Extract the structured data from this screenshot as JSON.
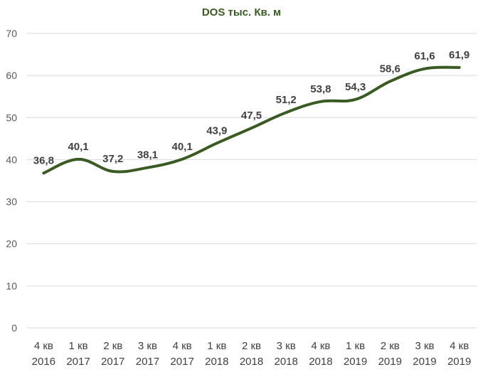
{
  "chart_data": {
    "type": "line",
    "title": "DOS тыс. Кв. м",
    "xlabel": "",
    "ylabel": "",
    "categories": [
      [
        "4 кв",
        "2016"
      ],
      [
        "1 кв",
        "2017"
      ],
      [
        "2 кв",
        "2017"
      ],
      [
        "3 кв",
        "2017"
      ],
      [
        "4 кв",
        "2017"
      ],
      [
        "1 кв",
        "2018"
      ],
      [
        "2 кв",
        "2018"
      ],
      [
        "3 кв",
        "2018"
      ],
      [
        "4 кв",
        "2018"
      ],
      [
        "1 кв",
        "2019"
      ],
      [
        "2 кв",
        "2019"
      ],
      [
        "3 кв",
        "2019"
      ],
      [
        "4 кв",
        "2019"
      ]
    ],
    "series": [
      {
        "values": [
          36.8,
          40.1,
          37.2,
          38.1,
          40.1,
          43.9,
          47.5,
          51.2,
          53.8,
          54.3,
          58.6,
          61.6,
          61.9
        ],
        "data_labels": [
          "36,8",
          "40,1",
          "37,2",
          "38,1",
          "40,1",
          "43,9",
          "47,5",
          "51,2",
          "53,8",
          "54,3",
          "58,6",
          "61,6",
          "61,9"
        ]
      }
    ],
    "ylim": [
      0,
      70
    ],
    "yticks": [
      0,
      10,
      20,
      30,
      40,
      50,
      60,
      70
    ],
    "grid": true,
    "legend": "none",
    "colors": {
      "line": "#3a5a23",
      "title": "#3a5a23",
      "grid": "#d9d9d9"
    }
  }
}
